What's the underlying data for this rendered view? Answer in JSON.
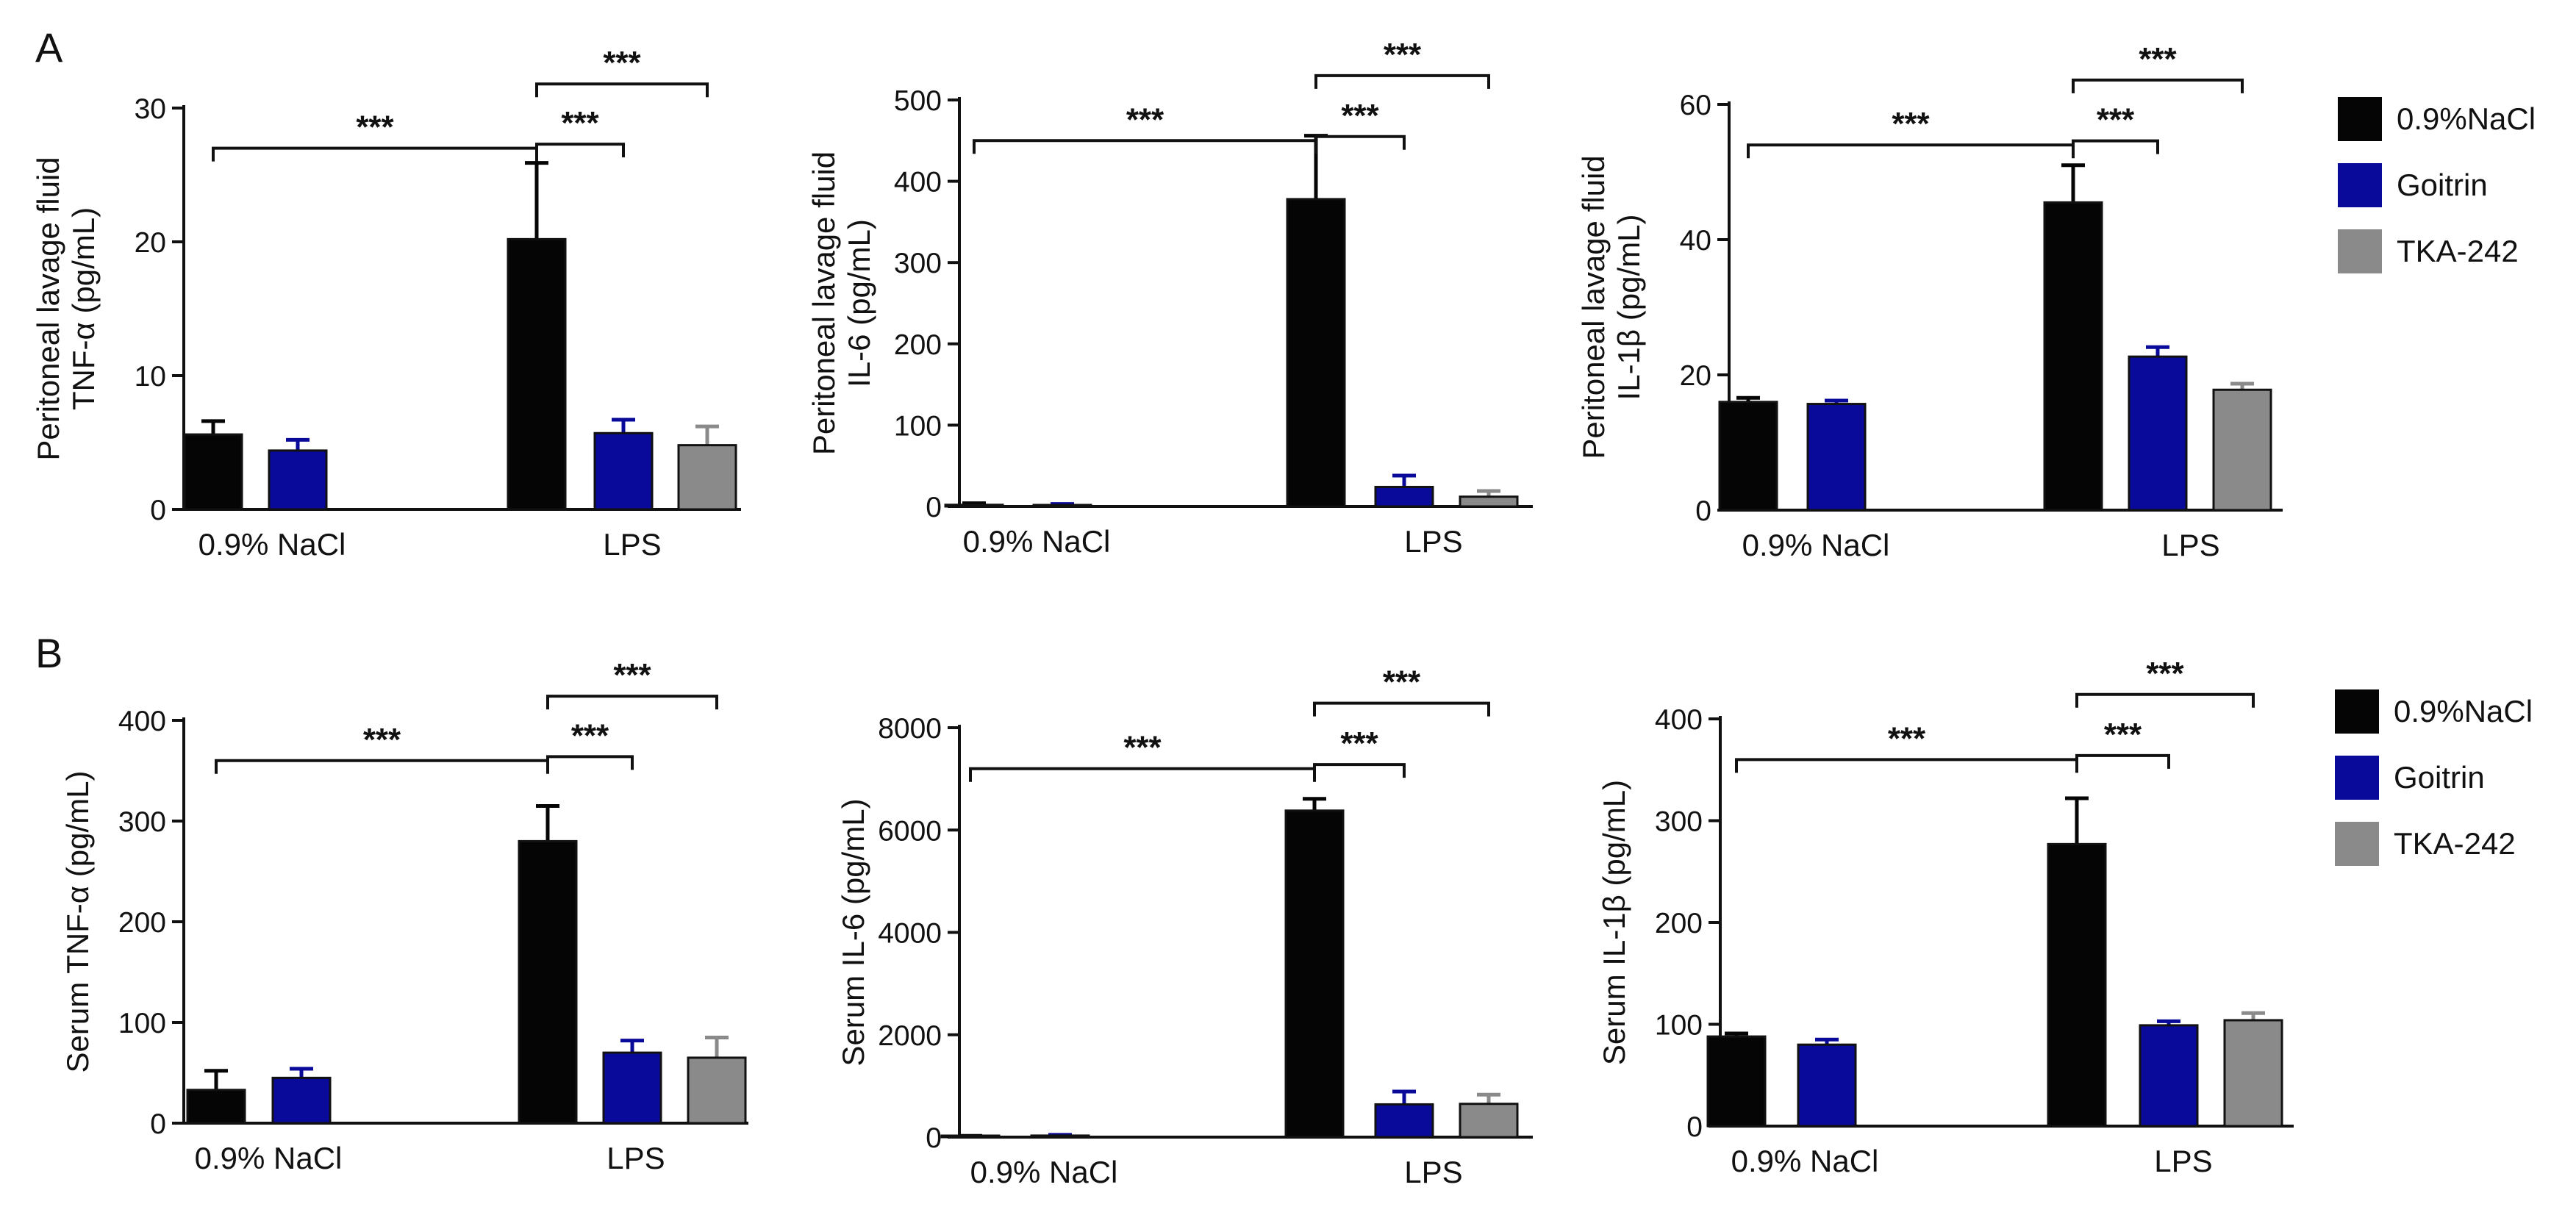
{
  "figure": {
    "panels": [
      {
        "letter": "A"
      },
      {
        "letter": "B"
      }
    ],
    "legend": [
      {
        "label": "0.9%NaCl",
        "color": "#050505"
      },
      {
        "label": "Goitrin",
        "color": "#0a0a9a"
      },
      {
        "label": "TKA-242",
        "color": "#8a8a8a"
      }
    ],
    "significance_label": "***"
  },
  "chart_data": [
    {
      "type": "bar",
      "panel": "A",
      "ylabel_lines": [
        "Peritoneal lavage fluid",
        "TNF-α (pg/mL)"
      ],
      "ylim": [
        0,
        30
      ],
      "yticks": [
        "0",
        "10",
        "20",
        "30"
      ],
      "ytick_values": [
        0,
        10,
        20,
        30
      ],
      "groups": [
        "0.9% NaCl",
        "LPS"
      ],
      "series": [
        {
          "name": "0.9%NaCl",
          "values": [
            5.6,
            20.2
          ],
          "errors": [
            1.0,
            5.7
          ]
        },
        {
          "name": "Goitrin",
          "values": [
            4.4,
            5.7
          ],
          "errors": [
            0.8,
            1.0
          ]
        },
        {
          "name": "TKA-242",
          "values": [
            null,
            4.8
          ],
          "errors": [
            null,
            1.4
          ]
        }
      ],
      "significance": [
        {
          "from": [
            0,
            0
          ],
          "to": [
            1,
            0
          ],
          "label": "***"
        },
        {
          "from": [
            1,
            0
          ],
          "to": [
            1,
            1
          ],
          "label": "***"
        },
        {
          "from": [
            1,
            0
          ],
          "to": [
            1,
            2
          ],
          "label": "***"
        }
      ]
    },
    {
      "type": "bar",
      "panel": "A",
      "ylabel_lines": [
        "Peritoneal lavage fluid",
        "IL-6 (pg/mL)"
      ],
      "ylim": [
        0,
        500
      ],
      "yticks": [
        "0",
        "100",
        "200",
        "300",
        "400",
        "500"
      ],
      "ytick_values": [
        0,
        100,
        200,
        300,
        400,
        500
      ],
      "groups": [
        "0.9% NaCl",
        "LPS"
      ],
      "series": [
        {
          "name": "0.9%NaCl",
          "values": [
            2,
            378
          ],
          "errors": [
            2,
            78
          ]
        },
        {
          "name": "Goitrin",
          "values": [
            1.5,
            24
          ],
          "errors": [
            1.5,
            14
          ]
        },
        {
          "name": "TKA-242",
          "values": [
            null,
            12
          ],
          "errors": [
            null,
            7
          ]
        }
      ],
      "significance": [
        {
          "from": [
            0,
            0
          ],
          "to": [
            1,
            0
          ],
          "label": "***"
        },
        {
          "from": [
            1,
            0
          ],
          "to": [
            1,
            1
          ],
          "label": "***"
        },
        {
          "from": [
            1,
            0
          ],
          "to": [
            1,
            2
          ],
          "label": "***"
        }
      ]
    },
    {
      "type": "bar",
      "panel": "A",
      "ylabel_lines": [
        "Peritoneal lavage fluid",
        "IL-1β (pg/mL)"
      ],
      "ylim": [
        0,
        60
      ],
      "yticks": [
        "0",
        "20",
        "40",
        "60"
      ],
      "ytick_values": [
        0,
        20,
        40,
        60
      ],
      "groups": [
        "0.9% NaCl",
        "LPS"
      ],
      "series": [
        {
          "name": "0.9%NaCl",
          "values": [
            16,
            45.5
          ],
          "errors": [
            0.6,
            5.5
          ]
        },
        {
          "name": "Goitrin",
          "values": [
            15.7,
            22.7
          ],
          "errors": [
            0.5,
            1.4
          ]
        },
        {
          "name": "TKA-242",
          "values": [
            null,
            17.8
          ],
          "errors": [
            null,
            0.9
          ]
        }
      ],
      "significance": [
        {
          "from": [
            0,
            0
          ],
          "to": [
            1,
            0
          ],
          "label": "***"
        },
        {
          "from": [
            1,
            0
          ],
          "to": [
            1,
            1
          ],
          "label": "***"
        },
        {
          "from": [
            1,
            0
          ],
          "to": [
            1,
            2
          ],
          "label": "***"
        }
      ]
    },
    {
      "type": "bar",
      "panel": "B",
      "ylabel_lines": [
        "Serum TNF-α (pg/mL)"
      ],
      "ylim": [
        0,
        400
      ],
      "yticks": [
        "0",
        "100",
        "200",
        "300",
        "400"
      ],
      "ytick_values": [
        0,
        100,
        200,
        300,
        400
      ],
      "groups": [
        "0.9% NaCl",
        "LPS"
      ],
      "series": [
        {
          "name": "0.9%NaCl",
          "values": [
            33,
            280
          ],
          "errors": [
            19,
            35
          ]
        },
        {
          "name": "Goitrin",
          "values": [
            45,
            70
          ],
          "errors": [
            9,
            12
          ]
        },
        {
          "name": "TKA-242",
          "values": [
            null,
            65
          ],
          "errors": [
            null,
            20
          ]
        }
      ],
      "significance": [
        {
          "from": [
            0,
            0
          ],
          "to": [
            1,
            0
          ],
          "label": "***"
        },
        {
          "from": [
            1,
            0
          ],
          "to": [
            1,
            1
          ],
          "label": "***"
        },
        {
          "from": [
            1,
            0
          ],
          "to": [
            1,
            2
          ],
          "label": "***"
        }
      ]
    },
    {
      "type": "bar",
      "panel": "B",
      "ylabel_lines": [
        "Serum IL-6 (pg/mL)"
      ],
      "ylim": [
        0,
        8000
      ],
      "yticks": [
        "0",
        "2000",
        "4000",
        "6000",
        "8000"
      ],
      "ytick_values": [
        0,
        2000,
        4000,
        6000,
        8000
      ],
      "groups": [
        "0.9% NaCl",
        "LPS"
      ],
      "series": [
        {
          "name": "0.9%NaCl",
          "values": [
            15,
            6380
          ],
          "errors": [
            10,
            230
          ]
        },
        {
          "name": "Goitrin",
          "values": [
            30,
            640
          ],
          "errors": [
            15,
            250
          ]
        },
        {
          "name": "TKA-242",
          "values": [
            null,
            650
          ],
          "errors": [
            null,
            180
          ]
        }
      ],
      "significance": [
        {
          "from": [
            0,
            0
          ],
          "to": [
            1,
            0
          ],
          "label": "***"
        },
        {
          "from": [
            1,
            0
          ],
          "to": [
            1,
            1
          ],
          "label": "***"
        },
        {
          "from": [
            1,
            0
          ],
          "to": [
            1,
            2
          ],
          "label": "***"
        }
      ]
    },
    {
      "type": "bar",
      "panel": "B",
      "ylabel_lines": [
        "Serum IL-1β (pg/mL)"
      ],
      "ylim": [
        0,
        400
      ],
      "yticks": [
        "0",
        "100",
        "200",
        "300",
        "400"
      ],
      "ytick_values": [
        0,
        100,
        200,
        300,
        400
      ],
      "groups": [
        "0.9% NaCl",
        "LPS"
      ],
      "series": [
        {
          "name": "0.9%NaCl",
          "values": [
            88,
            277
          ],
          "errors": [
            3,
            45
          ]
        },
        {
          "name": "Goitrin",
          "values": [
            80,
            99
          ],
          "errors": [
            5,
            4
          ]
        },
        {
          "name": "TKA-242",
          "values": [
            null,
            104
          ],
          "errors": [
            null,
            7
          ]
        }
      ],
      "significance": [
        {
          "from": [
            0,
            0
          ],
          "to": [
            1,
            0
          ],
          "label": "***"
        },
        {
          "from": [
            1,
            0
          ],
          "to": [
            1,
            1
          ],
          "label": "***"
        },
        {
          "from": [
            1,
            0
          ],
          "to": [
            1,
            2
          ],
          "label": "***"
        }
      ]
    }
  ]
}
